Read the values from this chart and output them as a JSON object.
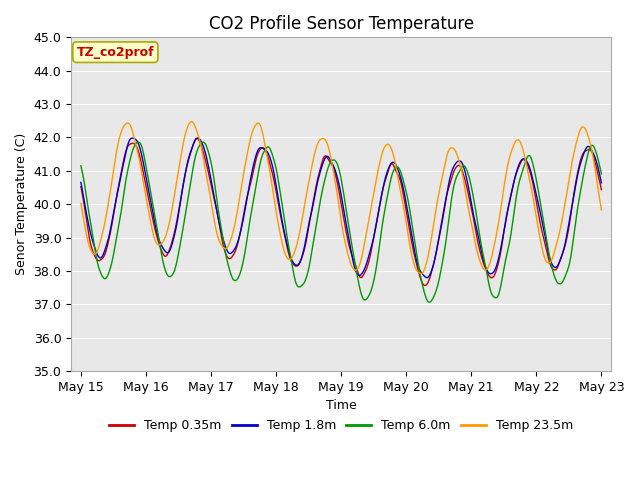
{
  "title": "CO2 Profile Sensor Temperature",
  "ylabel": "Senor Temperature (C)",
  "xlabel": "Time",
  "ylim": [
    35.0,
    45.0
  ],
  "yticks": [
    35.0,
    36.0,
    37.0,
    38.0,
    39.0,
    40.0,
    41.0,
    42.0,
    43.0,
    44.0,
    45.0
  ],
  "plot_bg_color": "#e8e8e8",
  "series": [
    {
      "label": "Temp 0.35m",
      "color": "#cc0000"
    },
    {
      "label": "Temp 1.8m",
      "color": "#0000cc"
    },
    {
      "label": "Temp 6.0m",
      "color": "#009900"
    },
    {
      "label": "Temp 23.5m",
      "color": "#ff9900"
    }
  ],
  "annotation_text": "TZ_co2prof",
  "annotation_color": "#cc0000",
  "annotation_bg": "#ffffcc",
  "annotation_border": "#aaaa00",
  "x_tick_labels": [
    "May 15",
    "May 16",
    "May 17",
    "May 18",
    "May 19",
    "May 20",
    "May 21",
    "May 22",
    "May 23"
  ],
  "x_tick_positions": [
    0,
    1,
    2,
    3,
    4,
    5,
    6,
    7,
    8
  ],
  "xlim": [
    -0.15,
    8.15
  ],
  "linewidth": 1.0,
  "title_fontsize": 12,
  "axis_fontsize": 9,
  "tick_fontsize": 9,
  "legend_fontsize": 9,
  "n_points": 800
}
